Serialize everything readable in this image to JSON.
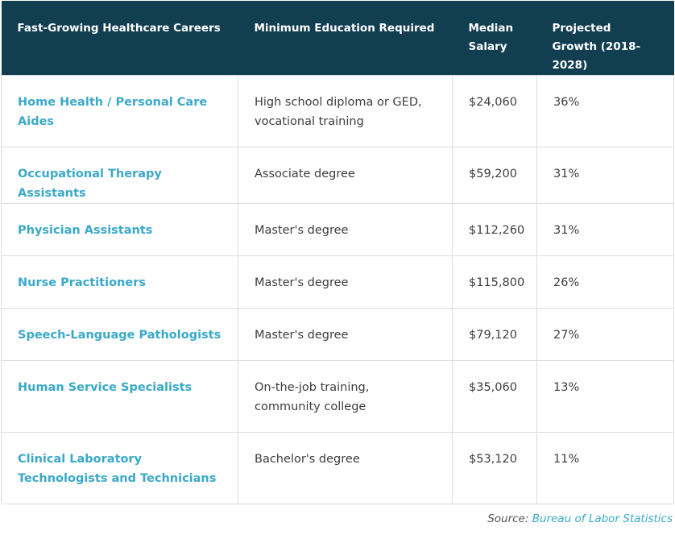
{
  "table": {
    "headers": [
      "Fast-Growing Healthcare Careers",
      "Minimum Education Required",
      "Median Salary",
      "Projected Growth (2018-2028)"
    ],
    "rows": [
      {
        "career": "Home Health / Personal Care Aides",
        "education": "High school diploma or GED, vocational training",
        "salary": "$24,060",
        "growth": "36%"
      },
      {
        "career": "Occupational Therapy Assistants",
        "education": "Associate degree",
        "salary": "$59,200",
        "growth": "31%"
      },
      {
        "career": "Physician Assistants",
        "education": "Master's degree",
        "salary": "$112,260",
        "growth": "31%"
      },
      {
        "career": "Nurse Practitioners",
        "education": "Master's degree",
        "salary": "$115,800",
        "growth": "26%"
      },
      {
        "career": "Speech-Language Pathologists",
        "education": "Master's degree",
        "salary": "$79,120",
        "growth": "27%"
      },
      {
        "career": "Human Service Specialists",
        "education": "On-the-job training, community college",
        "salary": "$35,060",
        "growth": "13%"
      },
      {
        "career": "Clinical Laboratory Technologists and Technicians",
        "education": "Bachelor's degree",
        "salary": "$53,120",
        "growth": "11%"
      }
    ]
  },
  "source": {
    "prefix": "Source:",
    "link_text": "Bureau of Labor Statistics"
  },
  "colors": {
    "header_bg": "#123e52",
    "header_text": "#ffffff",
    "career_link": "#3aa9c9",
    "border": "#dddddd"
  }
}
